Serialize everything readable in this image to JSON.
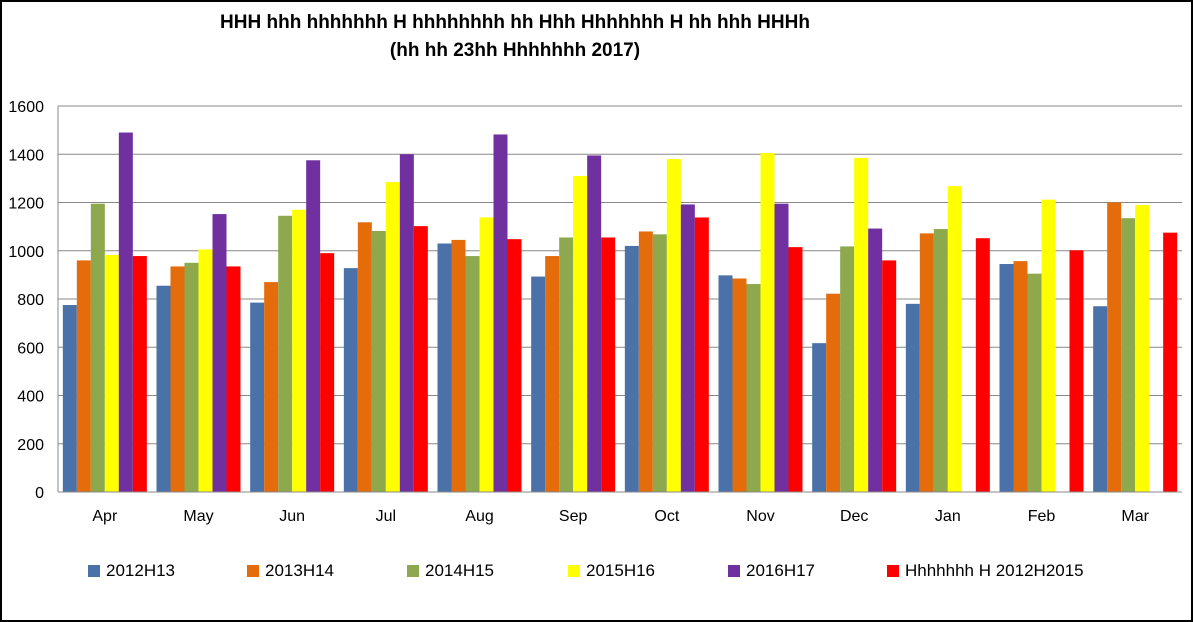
{
  "chart_data": {
    "type": "bar",
    "title": "HHH hhh hhhhhhh H hhhhhhhh hh Hhh Hhhhhhh H hh hhh HHHh",
    "subtitle": "(hh hh 23hh Hhhhhhh 2017)",
    "categories": [
      "Apr",
      "May",
      "Jun",
      "Jul",
      "Aug",
      "Sep",
      "Oct",
      "Nov",
      "Dec",
      "Jan",
      "Feb",
      "Mar"
    ],
    "ylim": [
      0,
      1600
    ],
    "yticks": [
      0,
      200,
      400,
      600,
      800,
      1000,
      1200,
      1400,
      1600
    ],
    "grid": true,
    "legend_position": "bottom",
    "series": [
      {
        "name": "2012H13",
        "color": "#4a72a8",
        "values": [
          775,
          855,
          785,
          928,
          1030,
          893,
          1020,
          898,
          617,
          780,
          945,
          770
        ]
      },
      {
        "name": "2013H14",
        "color": "#e46c0a",
        "values": [
          960,
          935,
          870,
          1118,
          1045,
          978,
          1080,
          885,
          822,
          1072,
          957,
          1200
        ]
      },
      {
        "name": "2014H15",
        "color": "#8ea84e",
        "values": [
          1195,
          950,
          1145,
          1082,
          978,
          1055,
          1068,
          862,
          1018,
          1090,
          905,
          1135
        ]
      },
      {
        "name": "2015H16",
        "color": "#ffff00",
        "values": [
          983,
          1005,
          1170,
          1285,
          1138,
          1310,
          1380,
          1405,
          1385,
          1268,
          1212,
          1190
        ]
      },
      {
        "name": "2016H17",
        "color": "#7030a0",
        "values": [
          1490,
          1152,
          1375,
          1400,
          1482,
          1395,
          1192,
          1195,
          1092,
          null,
          null,
          null
        ]
      },
      {
        "name": "Hhhhhhh H 2012H2015",
        "color": "#ff0000",
        "values": [
          978,
          935,
          990,
          1102,
          1048,
          1055,
          1138,
          1015,
          960,
          1052,
          1002,
          1075
        ]
      }
    ]
  }
}
